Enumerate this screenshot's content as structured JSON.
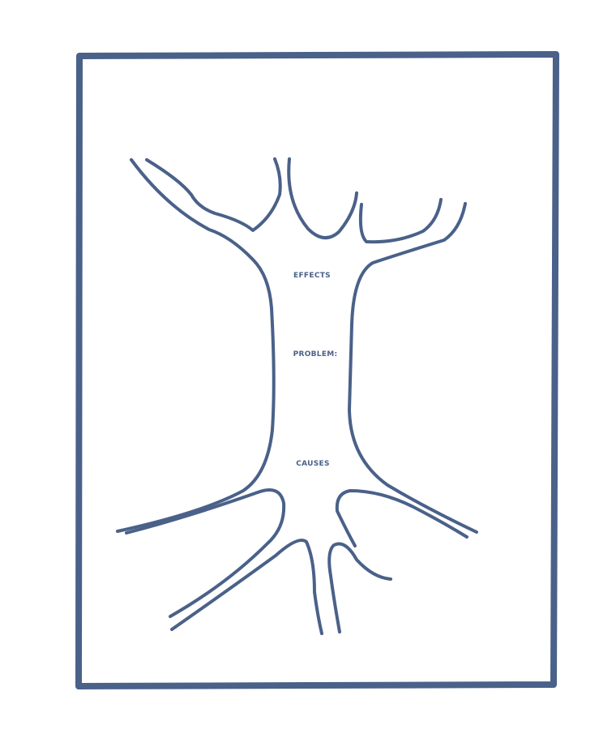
{
  "colors": {
    "ink": "#4a6189",
    "background": "#ffffff"
  },
  "labels": {
    "effects": "EFFECTS",
    "problem": "PROBLEM:",
    "causes": "CAUSES"
  }
}
